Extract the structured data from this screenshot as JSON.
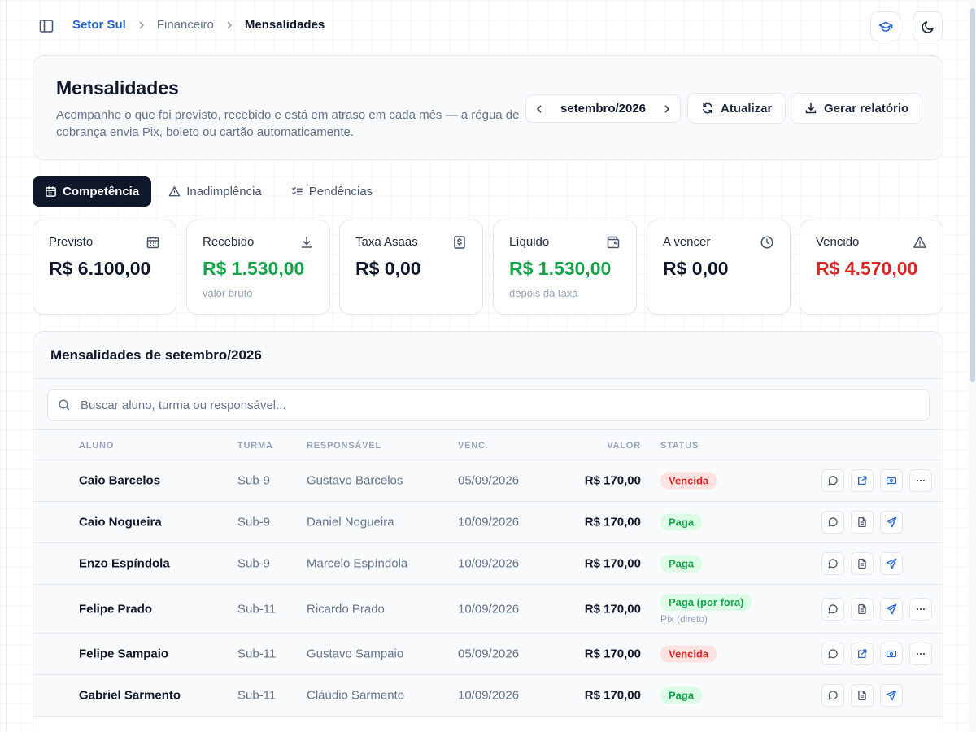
{
  "breadcrumb": {
    "root": "Setor Sul",
    "section": "Financeiro",
    "current": "Mensalidades"
  },
  "header": {
    "title": "Mensalidades",
    "description": "Acompanhe o que foi previsto, recebido e está em atraso em cada mês — a régua de cobrança envia Pix, boleto ou cartão automaticamente.",
    "month": "setembro/2026",
    "refresh_label": "Atualizar",
    "report_label": "Gerar relatório"
  },
  "tabs": [
    {
      "label": "Competência",
      "icon": "calendar-icon",
      "active": true
    },
    {
      "label": "Inadimplência",
      "icon": "warning-icon",
      "active": false
    },
    {
      "label": "Pendências",
      "icon": "checklist-icon",
      "active": false
    }
  ],
  "stats": [
    {
      "label": "Previsto",
      "value": "R$ 6.100,00",
      "sub": "",
      "icon": "calendar-icon",
      "color": "#0f172a"
    },
    {
      "label": "Recebido",
      "value": "R$ 1.530,00",
      "sub": "valor bruto",
      "icon": "download-icon",
      "color": "#16a34a"
    },
    {
      "label": "Taxa Asaas",
      "value": "R$ 0,00",
      "sub": "",
      "icon": "dollar-receipt-icon",
      "color": "#0f172a"
    },
    {
      "label": "Líquido",
      "value": "R$ 1.530,00",
      "sub": "depois da taxa",
      "icon": "wallet-icon",
      "color": "#16a34a"
    },
    {
      "label": "A vencer",
      "value": "R$ 0,00",
      "sub": "",
      "icon": "clock-icon",
      "color": "#0f172a"
    },
    {
      "label": "Vencido",
      "value": "R$ 4.570,00",
      "sub": "",
      "icon": "warning-icon",
      "color": "#dc2626"
    }
  ],
  "table": {
    "title": "Mensalidades de setembro/2026",
    "search_placeholder": "Buscar aluno, turma ou responsável...",
    "columns": [
      "ALUNO",
      "TURMA",
      "RESPONSÁVEL",
      "VENC.",
      "VALOR",
      "STATUS"
    ],
    "rows": [
      {
        "aluno": "Caio Barcelos",
        "turma": "Sub-9",
        "responsavel": "Gustavo Barcelos",
        "venc": "05/09/2026",
        "valor": "R$ 170,00",
        "status": "Vencida",
        "status_type": "overdue",
        "status_sub": ""
      },
      {
        "aluno": "Caio Nogueira",
        "turma": "Sub-9",
        "responsavel": "Daniel Nogueira",
        "venc": "10/09/2026",
        "valor": "R$ 170,00",
        "status": "Paga",
        "status_type": "paid",
        "status_sub": ""
      },
      {
        "aluno": "Enzo Espíndola",
        "turma": "Sub-9",
        "responsavel": "Marcelo Espíndola",
        "venc": "10/09/2026",
        "valor": "R$ 170,00",
        "status": "Paga",
        "status_type": "paid",
        "status_sub": ""
      },
      {
        "aluno": "Felipe Prado",
        "turma": "Sub-11",
        "responsavel": "Ricardo Prado",
        "venc": "10/09/2026",
        "valor": "R$ 170,00",
        "status": "Paga (por fora)",
        "status_type": "paid-external",
        "status_sub": "Pix (direto)"
      },
      {
        "aluno": "Felipe Sampaio",
        "turma": "Sub-11",
        "responsavel": "Gustavo Sampaio",
        "venc": "05/09/2026",
        "valor": "R$ 170,00",
        "status": "Vencida",
        "status_type": "overdue",
        "status_sub": ""
      },
      {
        "aluno": "Gabriel Sarmento",
        "turma": "Sub-11",
        "responsavel": "Cláudio Sarmento",
        "venc": "10/09/2026",
        "valor": "R$ 170,00",
        "status": "Paga",
        "status_type": "paid",
        "status_sub": ""
      }
    ]
  },
  "colors": {
    "accent": "#2563c9",
    "dark": "#0f172a",
    "success": "#16a34a",
    "danger": "#dc2626"
  }
}
